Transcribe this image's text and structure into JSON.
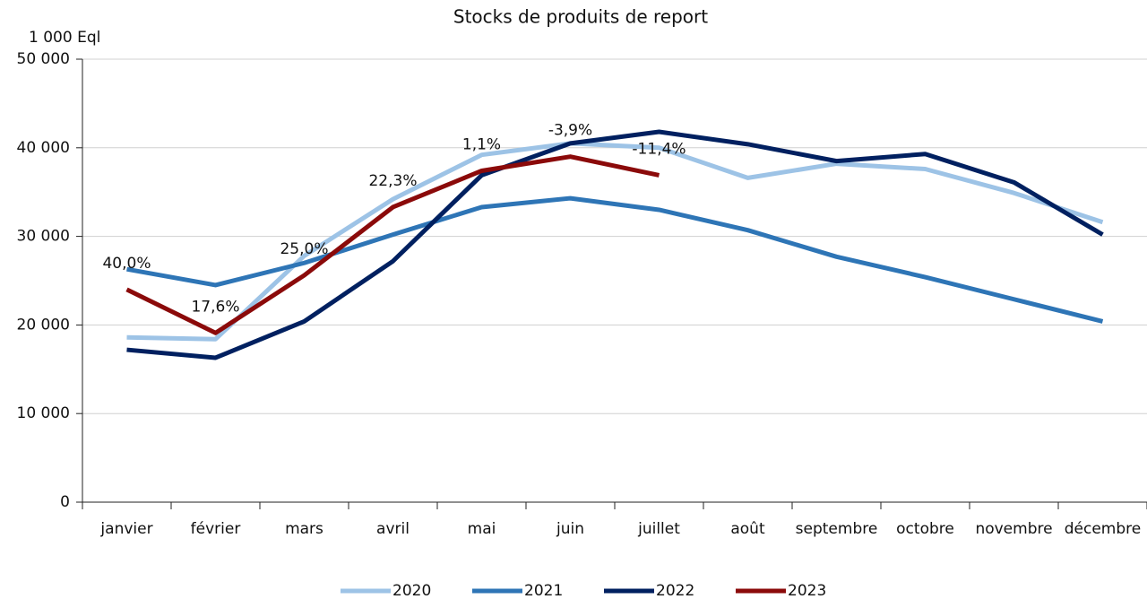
{
  "chart_data": {
    "type": "line",
    "title": "Stocks de produits de report",
    "y_unit": "1 000 Eql",
    "categories": [
      "janvier",
      "février",
      "mars",
      "avril",
      "mai",
      "juin",
      "juillet",
      "août",
      "septembre",
      "octobre",
      "novembre",
      "décembre"
    ],
    "series": [
      {
        "name": "2020",
        "color": "#9dc3e6",
        "values": [
          18600,
          18400,
          27800,
          34200,
          39200,
          40500,
          40000,
          36600,
          38200,
          37600,
          34900,
          31600
        ]
      },
      {
        "name": "2021",
        "color": "#2e75b6",
        "values": [
          26300,
          24500,
          27000,
          30200,
          33300,
          34300,
          33000,
          30700,
          27700,
          25400,
          22900,
          20400
        ]
      },
      {
        "name": "2022",
        "color": "#002060",
        "values": [
          17200,
          16300,
          20400,
          27200,
          36900,
          40500,
          41800,
          40400,
          38500,
          39300,
          36100,
          30200
        ]
      },
      {
        "name": "2023",
        "color": "#8b0a0a",
        "values": [
          24000,
          19100,
          25600,
          33300,
          37400,
          39000,
          36900,
          null,
          null,
          null,
          null,
          null
        ],
        "annotations": [
          "40,0%",
          "17,6%",
          "25,0%",
          "22,3%",
          "1,1%",
          "-3,9%",
          "-11,4%",
          null,
          null,
          null,
          null,
          null
        ]
      }
    ],
    "ylim": [
      0,
      50000
    ],
    "yticks": [
      0,
      {
        "value": 10000,
        "label": "10 000"
      },
      {
        "value": 20000,
        "label": "20 000"
      },
      {
        "value": 30000,
        "label": "30 000"
      },
      {
        "value": 40000,
        "label": "40 000"
      },
      {
        "value": 50000,
        "label": "50 000"
      }
    ],
    "grid": true,
    "legend": "bottom"
  }
}
